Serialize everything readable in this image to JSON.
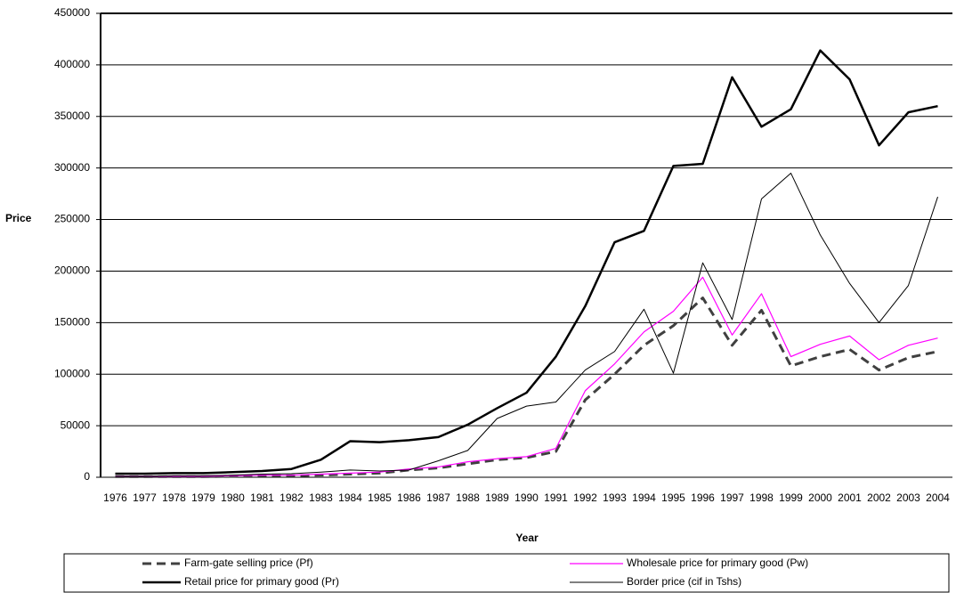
{
  "chart_data": {
    "type": "line",
    "y_label": "Price",
    "x_label": "Year",
    "categories": [
      "1976",
      "1977",
      "1978",
      "1979",
      "1980",
      "1981",
      "1982",
      "1983",
      "1984",
      "1985",
      "1986",
      "1987",
      "1988",
      "1989",
      "1990",
      "1991",
      "1992",
      "1993",
      "1994",
      "1995",
      "1996",
      "1997",
      "1998",
      "1999",
      "2000",
      "2001",
      "2002",
      "2003",
      "2004"
    ],
    "ylim": [
      0,
      450000
    ],
    "yticks": [
      0,
      50000,
      100000,
      150000,
      200000,
      250000,
      300000,
      350000,
      400000,
      450000
    ],
    "grid": true,
    "legend": "bottom",
    "series": [
      {
        "name": "Farm-gate selling price (Pf)",
        "color": "#404040",
        "linestyle": "dashed",
        "linewidth": 3,
        "values": [
          500,
          500,
          500,
          500,
          1000,
          1500,
          1500,
          2000,
          3000,
          4000,
          7000,
          9000,
          13000,
          17000,
          19000,
          25000,
          75000,
          100000,
          128000,
          147000,
          174000,
          128000,
          162000,
          108000,
          117000,
          124000,
          104000,
          116000,
          122000
        ]
      },
      {
        "name": "Wholesale price for primary good (Pw)",
        "color": "#ff00ff",
        "linestyle": "solid",
        "linewidth": 1.2,
        "values": [
          1000,
          1000,
          1000,
          1000,
          1500,
          2000,
          2000,
          3000,
          4000,
          5000,
          8000,
          10000,
          15000,
          18000,
          20000,
          28000,
          84000,
          110000,
          141000,
          161000,
          194000,
          138000,
          178000,
          117000,
          129000,
          137000,
          114000,
          128000,
          135000
        ]
      },
      {
        "name": "Retail price for primary good (Pr)",
        "color": "#000000",
        "linestyle": "solid",
        "linewidth": 2.5,
        "values": [
          3500,
          3500,
          4000,
          4000,
          5000,
          6000,
          8000,
          17000,
          35000,
          34000,
          36000,
          39000,
          51000,
          67000,
          82000,
          117000,
          166000,
          228000,
          239000,
          302000,
          304000,
          388000,
          340000,
          357000,
          414000,
          386000,
          322000,
          354000,
          360000
        ]
      },
      {
        "name": "Border price (cif in Tshs)",
        "color": "#000000",
        "linestyle": "solid",
        "linewidth": 1,
        "values": [
          1000,
          1000,
          1500,
          1500,
          2000,
          3000,
          3500,
          5000,
          7000,
          6000,
          7000,
          16000,
          26000,
          57000,
          69000,
          73000,
          104000,
          122000,
          163000,
          101000,
          208000,
          153000,
          270000,
          295000,
          235000,
          188000,
          150000,
          186000,
          272000
        ]
      }
    ]
  }
}
